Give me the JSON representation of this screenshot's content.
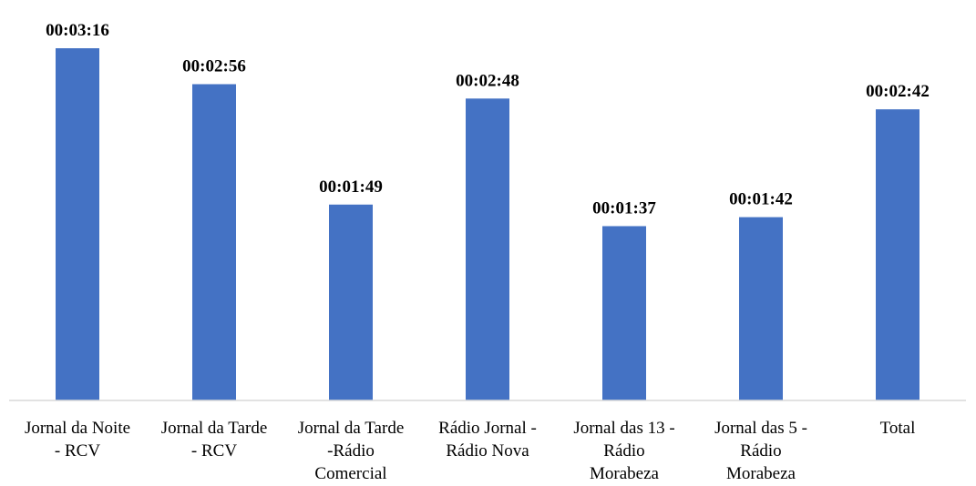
{
  "chart_data": {
    "type": "bar",
    "categories": [
      [
        "Jornal da Noite",
        "- RCV"
      ],
      [
        "Jornal da Tarde",
        "- RCV"
      ],
      [
        "Jornal da Tarde",
        "-Rádio",
        "Comercial"
      ],
      [
        "Rádio Jornal -",
        "Rádio Nova"
      ],
      [
        "Jornal das 13 -",
        "Rádio",
        "Morabeza"
      ],
      [
        "Jornal das 5 -",
        "Rádio",
        "Morabeza"
      ],
      [
        "Total"
      ]
    ],
    "values": [
      196,
      176,
      109,
      168,
      97,
      102,
      162
    ],
    "value_unit": "seconds",
    "data_labels": [
      "00:03:16",
      "00:02:56",
      "00:01:49",
      "00:02:48",
      "00:01:37",
      "00:01:42",
      "00:02:42"
    ],
    "title": "",
    "xlabel": "",
    "ylabel": "",
    "ylim": [
      0,
      196
    ],
    "grid": false,
    "legend": "none",
    "colors": {
      "bar": "#4472c4",
      "axis": "#d9d9d9"
    }
  }
}
